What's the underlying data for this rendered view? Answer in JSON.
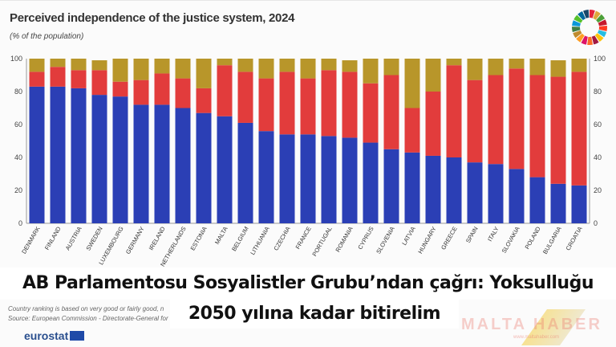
{
  "headline": {
    "line1": "AB Parlamentosu Sosyalistler Grubu’ndan çağrı: Yoksulluğu",
    "line2": "2050 yılına kadar bitirelim"
  },
  "footnotes": {
    "ranking": "Country ranking is based on very good or fairly good, n",
    "source": "Source: European Commission - Directorate-General for"
  },
  "logo": "eurostat",
  "watermark": {
    "name": "MALTA HABER",
    "url": "www.maltahaber.com"
  },
  "colors": {
    "blue": "#2b3fb5",
    "red": "#e23c3c",
    "yellow": "#b8962a"
  },
  "chart_data": {
    "type": "bar",
    "stacked": true,
    "title": "Perceived independence of the justice system, 2024",
    "subtitle": "(% of the population)",
    "ylim": [
      0,
      100
    ],
    "yticks": [
      0,
      20,
      40,
      60,
      80,
      100
    ],
    "grid": false,
    "categories": [
      "DENMARK",
      "FINLAND",
      "AUSTRIA",
      "SWEDEN",
      "LUXEMBOURG",
      "GERMANY",
      "IRELAND",
      "NETHERLANDS",
      "ESTONIA",
      "MALTA",
      "BELGIUM",
      "LITHUANIA",
      "CZECHIA",
      "FRANCE",
      "PORTUGAL",
      "ROMANIA",
      "CYPRUS",
      "SLOVENIA",
      "LATVIA",
      "HUNGARY",
      "GREECE",
      "SPAIN",
      "ITALY",
      "SLOVAKIA",
      "POLAND",
      "BULGARIA",
      "CROATIA"
    ],
    "series": [
      {
        "color": "#2b3fb5",
        "values": [
          83,
          83,
          82,
          78,
          77,
          72,
          72,
          70,
          67,
          65,
          61,
          56,
          54,
          54,
          53,
          52,
          49,
          45,
          43,
          41,
          40,
          37,
          36,
          33,
          28,
          24,
          23
        ]
      },
      {
        "color": "#e23c3c",
        "values": [
          9,
          12,
          11,
          15,
          9,
          15,
          19,
          18,
          15,
          31,
          31,
          32,
          38,
          34,
          40,
          40,
          36,
          45,
          27,
          39,
          56,
          50,
          54,
          61,
          62,
          65,
          69
        ]
      },
      {
        "color": "#b8962a",
        "values": [
          8,
          5,
          7,
          6,
          14,
          13,
          9,
          12,
          18,
          4,
          8,
          12,
          8,
          12,
          7,
          7,
          15,
          10,
          30,
          20,
          4,
          13,
          10,
          6,
          10,
          10,
          8
        ]
      }
    ]
  }
}
